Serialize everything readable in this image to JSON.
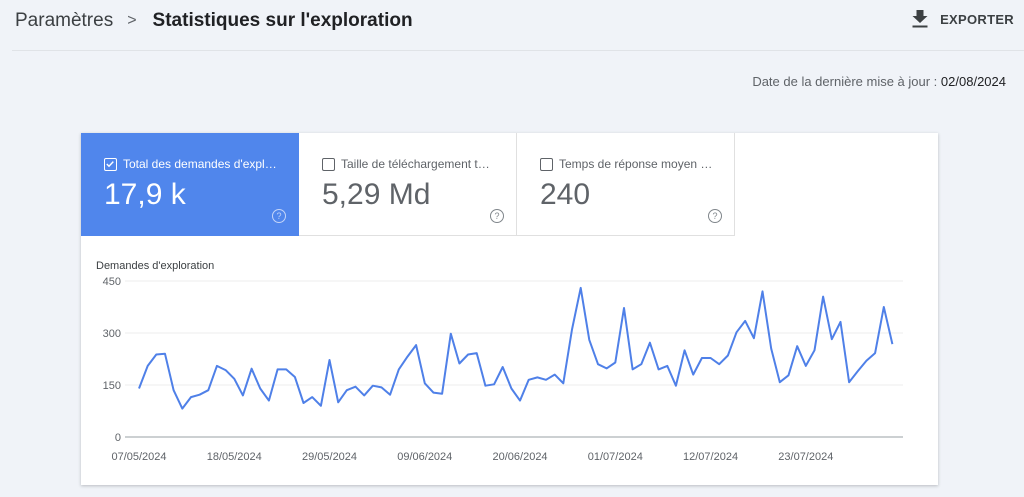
{
  "header": {
    "breadcrumb_parent": "Paramètres",
    "breadcrumb_separator": ">",
    "breadcrumb_current": "Statistiques sur l'exploration",
    "export_label": "EXPORTER",
    "export_icon": "download-icon"
  },
  "last_update": {
    "label": "Date de la dernière mise à jour :",
    "value": "02/08/2024"
  },
  "metrics": [
    {
      "label": "Total des demandes d'expl…",
      "value": "17,9 k",
      "checked": true,
      "help_icon": "help-circle-icon"
    },
    {
      "label": "Taille de téléchargement t…",
      "value": "5,29 Md",
      "checked": false,
      "help_icon": "help-circle-icon"
    },
    {
      "label": "Temps de réponse moyen …",
      "value": "240",
      "checked": false,
      "help_icon": "help-circle-icon"
    }
  ],
  "colors": {
    "accent": "#5086ec",
    "line": "#4f80e8",
    "background": "#f0f3f8"
  },
  "chart_data": {
    "type": "line",
    "title": "Demandes d'exploration",
    "ylabel": "Demandes d'exploration",
    "xlabel": "",
    "ylim": [
      0,
      450
    ],
    "yticks": [
      0,
      150,
      300,
      450
    ],
    "xtick_labels": [
      "07/05/2024",
      "18/05/2024",
      "29/05/2024",
      "09/06/2024",
      "20/06/2024",
      "01/07/2024",
      "12/07/2024",
      "23/07/2024"
    ],
    "grid": true,
    "x_start": "07/05/2024",
    "x_step_days": 1,
    "series": [
      {
        "name": "Demandes d'exploration",
        "values": [
          140,
          205,
          238,
          240,
          135,
          82,
          115,
          122,
          135,
          205,
          193,
          168,
          120,
          197,
          140,
          105,
          195,
          195,
          173,
          98,
          115,
          90,
          222,
          100,
          135,
          145,
          120,
          148,
          143,
          122,
          195,
          232,
          265,
          155,
          128,
          125,
          298,
          212,
          238,
          242,
          148,
          152,
          202,
          140,
          105,
          165,
          172,
          165,
          180,
          155,
          310,
          430,
          280,
          210,
          198,
          215,
          372,
          195,
          210,
          272,
          195,
          205,
          148,
          250,
          180,
          228,
          228,
          210,
          235,
          302,
          335,
          285,
          420,
          255,
          158,
          178,
          262,
          205,
          250,
          405,
          282,
          332,
          158,
          190,
          220,
          242,
          375,
          268
        ]
      }
    ]
  }
}
